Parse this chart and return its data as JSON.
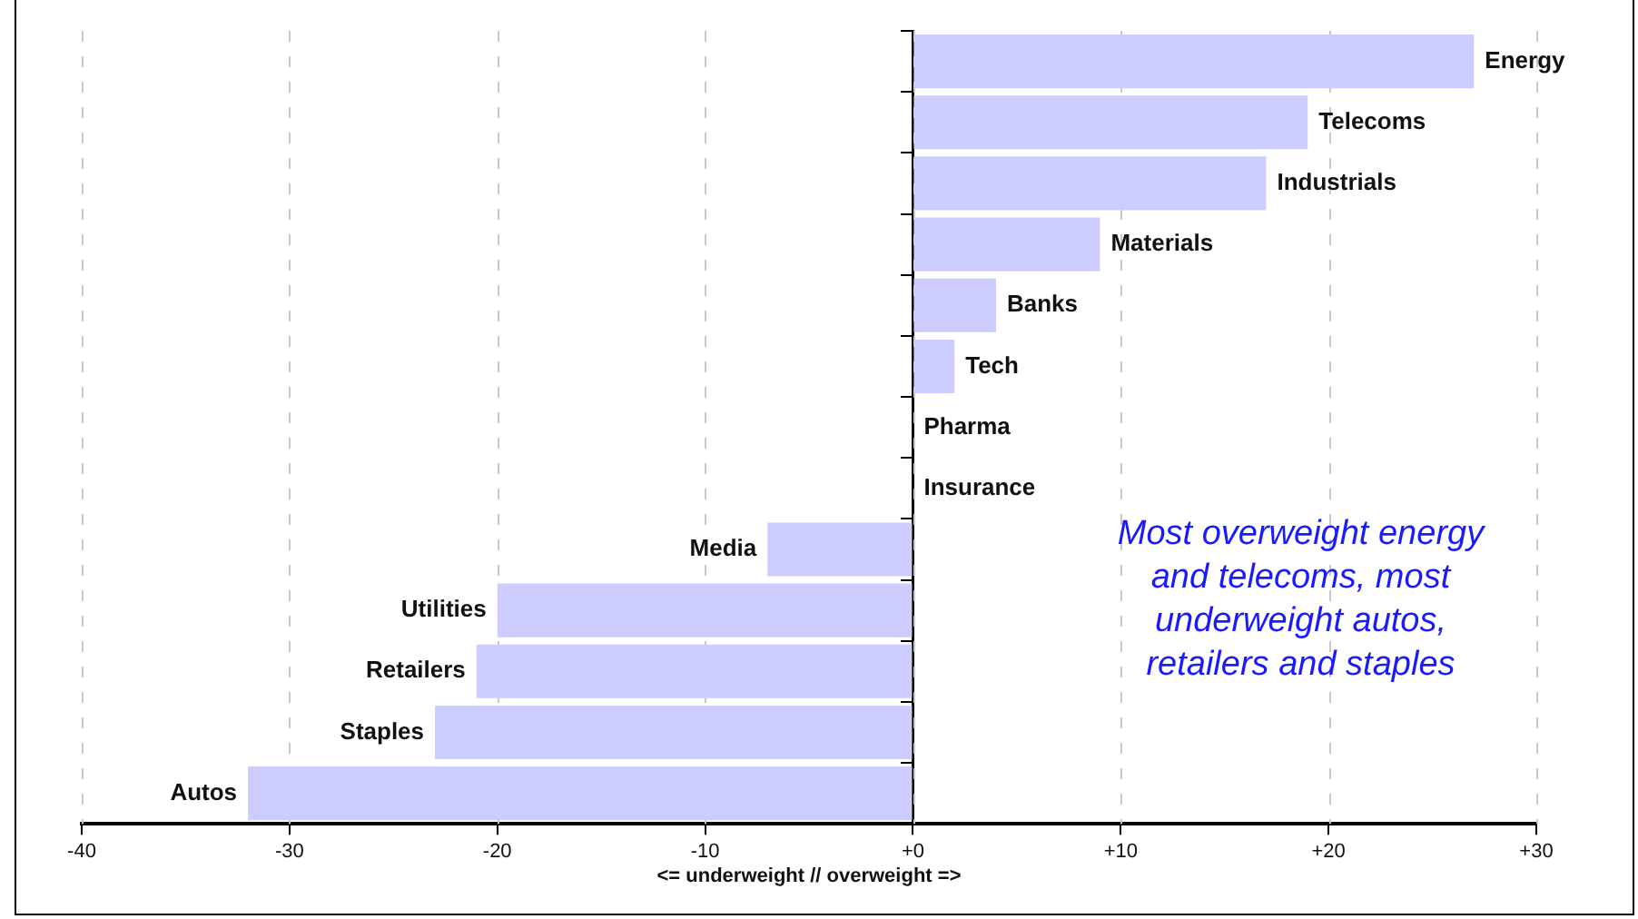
{
  "chart_data": {
    "type": "bar",
    "orientation": "horizontal",
    "xlabel": "<= underweight // overweight =>",
    "categories": [
      "Energy",
      "Telecoms",
      "Industrials",
      "Materials",
      "Banks",
      "Tech",
      "Pharma",
      "Insurance",
      "Media",
      "Utilities",
      "Retailers",
      "Staples",
      "Autos"
    ],
    "values": [
      27,
      19,
      17,
      9,
      4,
      2,
      0,
      0,
      -7,
      -20,
      -21,
      -23,
      -32
    ],
    "color": "#ccccff",
    "xlim": [
      -40,
      30
    ],
    "xticks": [
      -40,
      -30,
      -20,
      -10,
      {
        "value": 0,
        "label": "+0"
      },
      {
        "value": 10,
        "label": "+10"
      },
      {
        "value": 20,
        "label": "+20"
      },
      {
        "value": 30,
        "label": "+30"
      }
    ],
    "grid": "x",
    "legend": false,
    "annotations": [
      "Most overweight energy and telecoms, most underweight autos, retailers and staples"
    ]
  }
}
